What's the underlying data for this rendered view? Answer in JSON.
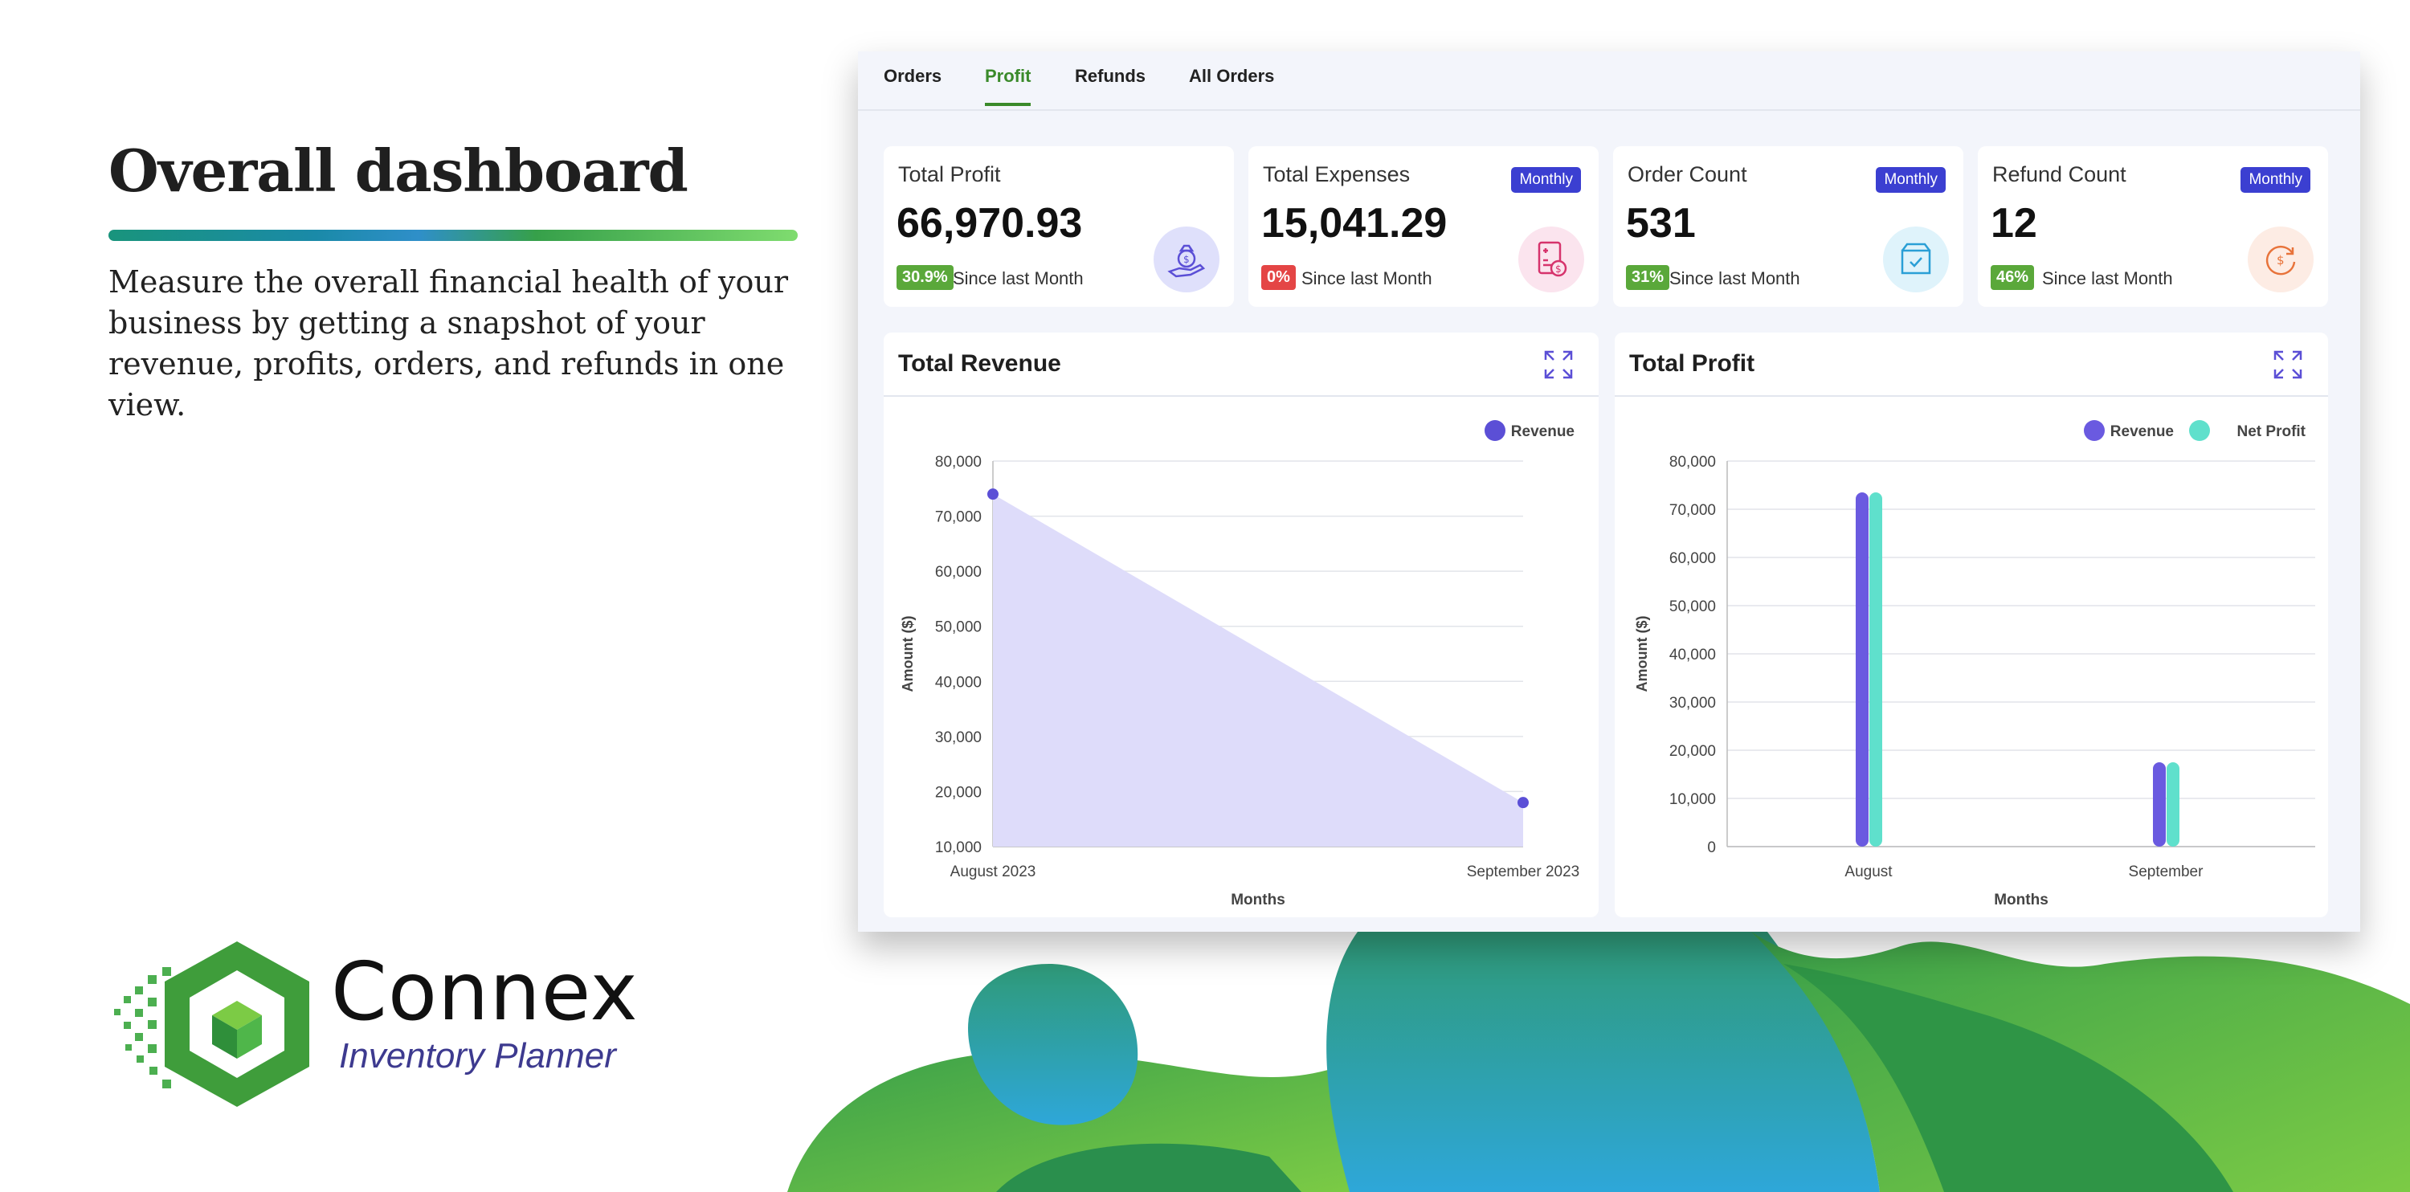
{
  "promo": {
    "headline": "Overall dashboard",
    "blurb": "Measure the overall financial health of your business by getting a snapshot of your revenue, profits, orders, and refunds in one view.",
    "brand_name": "Connex",
    "brand_sub": "Inventory Planner"
  },
  "tabs": [
    {
      "label": "Orders"
    },
    {
      "label": "Profit"
    },
    {
      "label": "Refunds"
    },
    {
      "label": "All Orders"
    }
  ],
  "active_tab": "Profit",
  "kpis": [
    {
      "title": "Total Profit",
      "value": "66,970.93",
      "delta": "30.9%",
      "since": "Since last Month",
      "badge": "",
      "delta_color": "#5aa83a",
      "icon": "money-bag-hand-icon"
    },
    {
      "title": "Total Expenses",
      "value": "15,041.29",
      "delta": "0%",
      "since": "Since last Month",
      "badge": "Monthly",
      "delta_color": "#e44545",
      "icon": "invoice-dollar-icon"
    },
    {
      "title": "Order Count",
      "value": "531",
      "delta": "31%",
      "since": "Since last Month",
      "badge": "Monthly",
      "delta_color": "#5aa83a",
      "icon": "box-check-icon"
    },
    {
      "title": "Refund Count",
      "value": "12",
      "delta": "46%",
      "since": "Since last Month",
      "badge": "Monthly",
      "delta_color": "#5aa83a",
      "icon": "refund-dollar-icon"
    }
  ],
  "revenue_panel": {
    "title": "Total Revenue"
  },
  "profit_panel": {
    "title": "Total Profit"
  },
  "chart_data": [
    {
      "type": "area",
      "title": "Total Revenue",
      "xlabel": "Months",
      "ylabel": "Amount ($)",
      "categories": [
        "August 2023",
        "September 2023"
      ],
      "series": [
        {
          "name": "Revenue",
          "values": [
            74000,
            18000
          ],
          "color": "#5b4fd6"
        }
      ],
      "ylim": [
        10000,
        80000
      ],
      "yticks": [
        "80,000",
        "70,000",
        "60,000",
        "50,000",
        "40,000",
        "30,000",
        "20,000",
        "10,000"
      ],
      "legend": "top-right",
      "grid": true
    },
    {
      "type": "bar",
      "title": "Total Profit",
      "xlabel": "Months",
      "ylabel": "Amount ($)",
      "categories": [
        "August",
        "September"
      ],
      "series": [
        {
          "name": "Revenue",
          "values": [
            73500,
            17500
          ],
          "color": "#6a5ae0"
        },
        {
          "name": "Net Profit",
          "values": [
            73500,
            17500
          ],
          "color": "#5fe0cc"
        }
      ],
      "ylim": [
        0,
        80000
      ],
      "yticks": [
        "80,000",
        "70,000",
        "60,000",
        "50,000",
        "40,000",
        "30,000",
        "20,000",
        "10,000",
        "0"
      ],
      "legend": "top-right",
      "grid": true
    }
  ]
}
